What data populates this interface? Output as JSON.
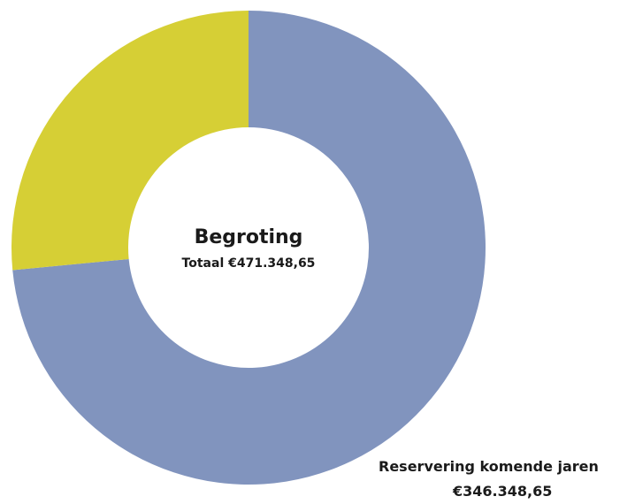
{
  "chart_data": {
    "type": "pie",
    "donut": true,
    "title": "Begroting",
    "subtitle": "Totaal €471.348,65",
    "total": 471348.65,
    "slices": [
      {
        "name": "Reservering komende jaren",
        "value": 346348.65,
        "value_label": "€346.348,65",
        "color": "#8194be"
      },
      {
        "name": "",
        "value": 125000.0,
        "value_label": "",
        "color": "#d6cf35"
      }
    ],
    "legend": "none",
    "grid": false
  }
}
